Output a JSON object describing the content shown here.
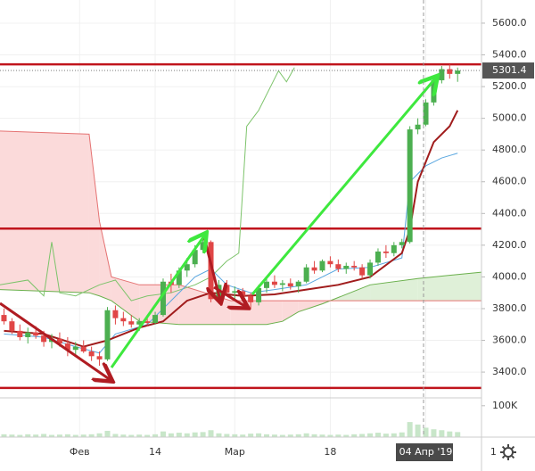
{
  "chart_data": {
    "type": "candlestick",
    "x": [
      0,
      1,
      2,
      3,
      4,
      5,
      6,
      7,
      8,
      9,
      10,
      11,
      12,
      13,
      14,
      15,
      16,
      17,
      18,
      19,
      20,
      21,
      22,
      23,
      24,
      25,
      26,
      27,
      28,
      29,
      30,
      31,
      32,
      33,
      34,
      35,
      36,
      37,
      38,
      39,
      40,
      41,
      42,
      43,
      44,
      45,
      46,
      47,
      48,
      49,
      50,
      51,
      52,
      53,
      54,
      55,
      56,
      57
    ],
    "open": [
      3760,
      3720,
      3660,
      3620,
      3650,
      3630,
      3590,
      3610,
      3580,
      3540,
      3560,
      3530,
      3500,
      3480,
      3790,
      3740,
      3720,
      3700,
      3720,
      3710,
      3760,
      3970,
      3950,
      4040,
      4080,
      4170,
      4220,
      3860,
      3950,
      3900,
      3910,
      3880,
      3840,
      3930,
      3970,
      3950,
      3960,
      3940,
      3970,
      4060,
      4040,
      4100,
      4080,
      4050,
      4070,
      4060,
      4010,
      4090,
      4160,
      4150,
      4200,
      4220,
      4930,
      4960,
      5100,
      5240,
      5310,
      5280
    ],
    "high": [
      3800,
      3740,
      3700,
      3680,
      3690,
      3660,
      3640,
      3650,
      3620,
      3590,
      3600,
      3560,
      3530,
      3810,
      3820,
      3780,
      3760,
      3740,
      3760,
      3780,
      3990,
      4020,
      4060,
      4120,
      4200,
      4250,
      4230,
      3980,
      3980,
      3940,
      3930,
      3900,
      3950,
      3990,
      4010,
      3980,
      3990,
      3980,
      4080,
      4100,
      4110,
      4130,
      4110,
      4090,
      4100,
      4080,
      4110,
      4180,
      4200,
      4220,
      4240,
      4950,
      5000,
      5120,
      5260,
      5330,
      5340,
      5320
    ],
    "low": [
      3700,
      3640,
      3600,
      3580,
      3610,
      3560,
      3550,
      3560,
      3500,
      3510,
      3520,
      3470,
      3440,
      3470,
      3700,
      3690,
      3680,
      3660,
      3690,
      3700,
      3750,
      3900,
      3930,
      4000,
      4060,
      4150,
      3840,
      3830,
      3880,
      3860,
      3850,
      3800,
      3820,
      3900,
      3930,
      3910,
      3920,
      3900,
      3960,
      4020,
      4030,
      4060,
      4030,
      4020,
      4040,
      3990,
      3990,
      4070,
      4120,
      4130,
      4180,
      4210,
      4900,
      4950,
      5080,
      5220,
      5250,
      5230
    ],
    "close": [
      3720,
      3660,
      3620,
      3650,
      3630,
      3590,
      3610,
      3580,
      3540,
      3560,
      3530,
      3500,
      3480,
      3790,
      3740,
      3720,
      3700,
      3720,
      3710,
      3760,
      3970,
      3950,
      4040,
      4080,
      4170,
      4220,
      3860,
      3950,
      3900,
      3910,
      3880,
      3840,
      3930,
      3970,
      3950,
      3960,
      3940,
      3970,
      4060,
      4040,
      4100,
      4080,
      4050,
      4070,
      4060,
      4010,
      4090,
      4160,
      4150,
      4200,
      4220,
      4930,
      4960,
      5100,
      5240,
      5310,
      5280,
      5301.4
    ],
    "up_color": "#4caf50",
    "down_color": "#e04646",
    "xlim": [
      -0.5,
      60
    ],
    "xticks": [
      {
        "value": 9.5,
        "label": "Фев"
      },
      {
        "value": 19,
        "label": "14"
      },
      {
        "value": 29,
        "label": "Мар"
      },
      {
        "value": 41,
        "label": "18"
      },
      {
        "value": 53,
        "label": "04 Апр '19"
      },
      {
        "value": 61.5,
        "label": "1"
      }
    ],
    "ylim": [
      3243,
      5746
    ],
    "yticks": [
      {
        "value": 3400,
        "label": "3400.0"
      },
      {
        "value": 3600,
        "label": "3600.0"
      },
      {
        "value": 3800,
        "label": "3800.0"
      },
      {
        "value": 4000,
        "label": "4000.0"
      },
      {
        "value": 4200,
        "label": "4200.0"
      },
      {
        "value": 4400,
        "label": "4400.0"
      },
      {
        "value": 4600,
        "label": "4600.0"
      },
      {
        "value": 4800,
        "label": "4800.0"
      },
      {
        "value": 5000,
        "label": "5000.0"
      },
      {
        "value": 5200,
        "label": "5200.0"
      },
      {
        "value": 5400,
        "label": "5400.0"
      },
      {
        "value": 5600,
        "label": "5600.0"
      }
    ],
    "grid": true,
    "levels": [
      5340,
      4305,
      3300
    ],
    "level_color": "#c0141c",
    "cloud": {
      "x": [
        -0.5,
        10.7,
        12,
        13.5,
        17,
        22,
        28.5,
        33,
        35,
        37,
        40,
        46,
        52,
        60
      ],
      "span_a": [
        3920,
        3900,
        3880,
        3850,
        3720,
        3700,
        3700,
        3700,
        3720,
        3780,
        3830,
        3950,
        3990,
        4030
      ],
      "span_b": [
        4920,
        4900,
        4350,
        4000,
        3950,
        3950,
        3850,
        3850,
        3850,
        3850,
        3850,
        3850,
        3850,
        3850
      ],
      "color_a": "#6ab04c",
      "color_b": "#e57373",
      "fill_a": "#dff0d8",
      "fill_b": "#fbdada"
    },
    "lines": [
      {
        "color": "#7cc36a",
        "x": [
          -0.5,
          3,
          5,
          6,
          7,
          9,
          12,
          14,
          16,
          18,
          21,
          24,
          26,
          28,
          29.5,
          30.5,
          32,
          33.5,
          34.5,
          35.5,
          36.5
        ],
        "values": [
          3950,
          3980,
          3880,
          4220,
          3900,
          3880,
          3950,
          3980,
          3850,
          3880,
          3900,
          3950,
          4000,
          4100,
          4150,
          4950,
          5050,
          5200,
          5300,
          5230,
          5320
        ]
      },
      {
        "color": "#5aa7e0",
        "x": [
          0,
          5,
          9,
          12,
          14,
          18,
          20,
          24,
          26,
          28,
          31,
          34,
          38,
          42,
          46,
          50,
          51,
          53,
          55,
          57
        ],
        "values": [
          3640,
          3620,
          3560,
          3520,
          3640,
          3700,
          3800,
          4000,
          4050,
          3950,
          3900,
          3920,
          3950,
          4050,
          4060,
          4120,
          4600,
          4700,
          4750,
          4780
        ]
      },
      {
        "color": "#a01c1c",
        "x": [
          0,
          5,
          10,
          13,
          17,
          20,
          23,
          26,
          30,
          34,
          38,
          42,
          46,
          50,
          51,
          52,
          54,
          56,
          57
        ],
        "values": [
          3660,
          3640,
          3560,
          3600,
          3680,
          3720,
          3850,
          3900,
          3880,
          3890,
          3920,
          3950,
          4000,
          4150,
          4300,
          4600,
          4850,
          4950,
          5050
        ]
      }
    ],
    "volume": {
      "values": [
        9000,
        8000,
        7000,
        9000,
        8000,
        10000,
        7000,
        8000,
        9000,
        7000,
        8000,
        9000,
        12000,
        20000,
        10000,
        8000,
        7000,
        8000,
        7000,
        9000,
        18000,
        12000,
        14000,
        12000,
        15000,
        16000,
        22000,
        12000,
        10000,
        9000,
        8000,
        11000,
        12000,
        9000,
        8000,
        7000,
        8000,
        9000,
        12000,
        9000,
        8000,
        7000,
        8000,
        7000,
        9000,
        10000,
        12000,
        14000,
        11000,
        12000,
        15000,
        48000,
        40000,
        30000,
        25000,
        22000,
        18000,
        16000
      ],
      "color": "#c8e6c9",
      "ylim": [
        0,
        125000
      ],
      "yticks": [
        {
          "value": 100000,
          "label": "100K"
        }
      ]
    }
  }
}
